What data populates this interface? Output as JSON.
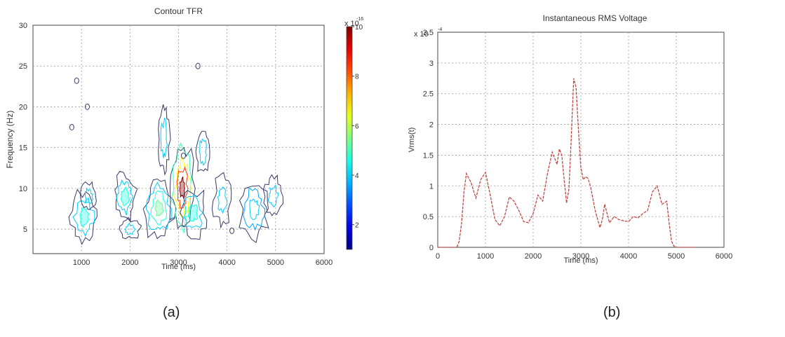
{
  "chart_data": [
    {
      "type": "heatmap",
      "title": "Contour TFR",
      "xlabel": "Time (ms)",
      "ylabel": "Frequency (Hz)",
      "xlim": [
        0,
        6000
      ],
      "ylim": [
        2,
        30
      ],
      "xticks": [
        "1000",
        "2000",
        "3000",
        "4000",
        "5000",
        "6000"
      ],
      "yticks": [
        "5",
        "10",
        "15",
        "20",
        "25",
        "30"
      ],
      "grid": true,
      "colorbar": {
        "ticks": [
          "2",
          "4",
          "6",
          "8",
          "10"
        ],
        "exponent": "-16",
        "multiplier": "x 10"
      },
      "contour_blobs": [
        {
          "t": 1050,
          "f": 6.5,
          "rt": 280,
          "rf": 3.2,
          "rings": 3,
          "peak": 2
        },
        {
          "t": 1150,
          "f": 9.0,
          "rt": 150,
          "rf": 1.8,
          "rings": 2,
          "peak": 1
        },
        {
          "t": 1900,
          "f": 9.0,
          "rt": 230,
          "rf": 3.0,
          "rings": 3,
          "peak": 2
        },
        {
          "t": 2000,
          "f": 5.0,
          "rt": 200,
          "rf": 1.2,
          "rings": 2,
          "peak": 1
        },
        {
          "t": 2600,
          "f": 7.5,
          "rt": 300,
          "rf": 4.0,
          "rings": 4,
          "peak": 3
        },
        {
          "t": 2700,
          "f": 16.0,
          "rt": 120,
          "rf": 4.5,
          "rings": 2,
          "peak": 1
        },
        {
          "t": 3080,
          "f": 10.0,
          "rt": 260,
          "rf": 6.0,
          "rings": 5,
          "peak": 10
        },
        {
          "t": 3300,
          "f": 7.0,
          "rt": 280,
          "rf": 3.0,
          "rings": 3,
          "peak": 2
        },
        {
          "t": 3500,
          "f": 14.5,
          "rt": 150,
          "rf": 3.0,
          "rings": 2,
          "peak": 1
        },
        {
          "t": 3900,
          "f": 8.5,
          "rt": 180,
          "rf": 3.0,
          "rings": 2,
          "peak": 1
        },
        {
          "t": 4550,
          "f": 7.5,
          "rt": 300,
          "rf": 3.6,
          "rings": 3,
          "peak": 1
        },
        {
          "t": 4950,
          "f": 9.0,
          "rt": 180,
          "rf": 2.5,
          "rings": 2,
          "peak": 1
        }
      ],
      "spots": [
        [
          900,
          23.2
        ],
        [
          1120,
          20.0
        ],
        [
          800,
          17.5
        ],
        [
          3100,
          14.0
        ],
        [
          4100,
          4.8
        ],
        [
          3400,
          25.0
        ]
      ]
    },
    {
      "type": "line",
      "title": "Instantaneous RMS Voltage",
      "xlabel": "Time (ms)",
      "ylabel": "Vrms(t)",
      "xlim": [
        0,
        6000
      ],
      "ylim": [
        0,
        3.5
      ],
      "y_exponent_label": "x 10",
      "y_exponent": "-4",
      "xticks": [
        "0",
        "1000",
        "2000",
        "3000",
        "4000",
        "5000",
        "6000"
      ],
      "yticks": [
        "0",
        "0.5",
        "1",
        "1.5",
        "2",
        "2.5",
        "3",
        "3.5"
      ],
      "grid": true,
      "series": [
        {
          "color": "#c04848",
          "x": [
            0,
            300,
            400,
            450,
            500,
            550,
            600,
            700,
            800,
            900,
            1000,
            1100,
            1200,
            1300,
            1400,
            1500,
            1600,
            1700,
            1800,
            1900,
            2000,
            2100,
            2200,
            2300,
            2400,
            2450,
            2500,
            2550,
            2600,
            2650,
            2700,
            2750,
            2800,
            2850,
            2900,
            2950,
            3000,
            3050,
            3100,
            3150,
            3200,
            3300,
            3400,
            3450,
            3500,
            3600,
            3700,
            3800,
            3900,
            4000,
            4100,
            4200,
            4300,
            4400,
            4500,
            4600,
            4650,
            4700,
            4800,
            4850,
            4900,
            4950,
            5000,
            5100,
            5400
          ],
          "y": [
            0,
            0,
            0,
            0.1,
            0.4,
            0.9,
            1.2,
            1.05,
            0.8,
            1.1,
            1.22,
            0.85,
            0.45,
            0.35,
            0.5,
            0.82,
            0.75,
            0.6,
            0.42,
            0.4,
            0.55,
            0.85,
            0.75,
            1.2,
            1.55,
            1.45,
            1.35,
            1.6,
            1.5,
            1.1,
            0.72,
            0.95,
            1.8,
            2.75,
            2.6,
            1.9,
            1.3,
            1.1,
            1.15,
            1.12,
            1.0,
            0.6,
            0.32,
            0.45,
            0.7,
            0.4,
            0.5,
            0.45,
            0.43,
            0.42,
            0.5,
            0.48,
            0.55,
            0.6,
            0.9,
            1.0,
            0.85,
            0.7,
            0.75,
            0.4,
            0.1,
            0.02,
            0,
            0,
            0
          ]
        }
      ]
    }
  ],
  "panel_labels": {
    "a": "(a)",
    "b": "(b)"
  }
}
